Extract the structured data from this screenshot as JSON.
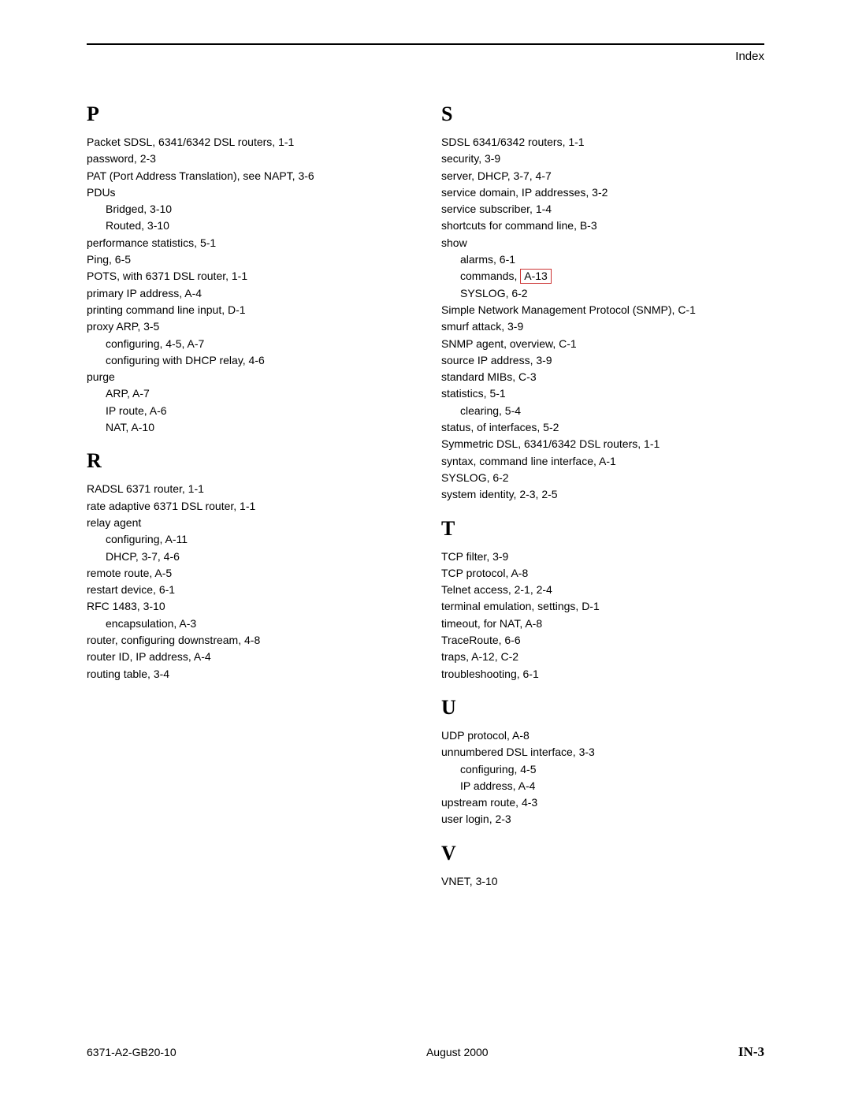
{
  "header": {
    "label": "Index"
  },
  "footer": {
    "doc_id": "6371-A2-GB20-10",
    "date": "August 2000",
    "page": "IN-3"
  },
  "col_left": [
    {
      "type": "letter",
      "text": "P"
    },
    {
      "type": "entry",
      "text": "Packet SDSL, 6341/6342 DSL routers,  1-1"
    },
    {
      "type": "entry",
      "text": "password,  2-3"
    },
    {
      "type": "entry",
      "text": "PAT (Port Address Translation), see NAPT,  3-6"
    },
    {
      "type": "entry",
      "text": "PDUs"
    },
    {
      "type": "sub",
      "text": "Bridged,  3-10"
    },
    {
      "type": "sub",
      "text": "Routed,  3-10"
    },
    {
      "type": "entry",
      "text": "performance statistics,  5-1"
    },
    {
      "type": "entry",
      "text": "Ping,  6-5"
    },
    {
      "type": "entry",
      "text": "POTS, with 6371 DSL router,  1-1"
    },
    {
      "type": "entry",
      "text": "primary IP address,  A-4"
    },
    {
      "type": "entry",
      "text": "printing command line input,  D-1"
    },
    {
      "type": "entry",
      "text": "proxy ARP,  3-5"
    },
    {
      "type": "sub",
      "text": "configuring,  4-5,  A-7"
    },
    {
      "type": "sub",
      "text": "configuring with DHCP relay,  4-6"
    },
    {
      "type": "entry",
      "text": "purge"
    },
    {
      "type": "sub",
      "text": "ARP,  A-7"
    },
    {
      "type": "sub",
      "text": "IP route,  A-6"
    },
    {
      "type": "sub",
      "text": "NAT,  A-10"
    },
    {
      "type": "letter",
      "text": "R"
    },
    {
      "type": "entry",
      "text": "RADSL 6371 router,  1-1"
    },
    {
      "type": "entry",
      "text": "rate adaptive 6371 DSL router,  1-1"
    },
    {
      "type": "entry",
      "text": "relay agent"
    },
    {
      "type": "sub",
      "text": "configuring,  A-11"
    },
    {
      "type": "sub",
      "text": "DHCP,  3-7,  4-6"
    },
    {
      "type": "entry",
      "text": "remote route,  A-5"
    },
    {
      "type": "entry",
      "text": "restart device,  6-1"
    },
    {
      "type": "entry",
      "text": "RFC 1483,  3-10"
    },
    {
      "type": "sub",
      "text": "encapsulation,  A-3"
    },
    {
      "type": "entry",
      "text": "router, configuring downstream,  4-8"
    },
    {
      "type": "entry",
      "text": "router ID, IP address,  A-4"
    },
    {
      "type": "entry",
      "text": "routing table,  3-4"
    }
  ],
  "col_right": [
    {
      "type": "letter",
      "text": "S"
    },
    {
      "type": "entry",
      "text": "SDSL 6341/6342 routers,  1-1"
    },
    {
      "type": "entry",
      "text": "security,  3-9"
    },
    {
      "type": "entry",
      "text": "server, DHCP,  3-7,  4-7"
    },
    {
      "type": "entry",
      "text": "service domain, IP addresses,  3-2"
    },
    {
      "type": "entry",
      "text": "service subscriber,  1-4"
    },
    {
      "type": "entry",
      "text": "shortcuts for command line,  B-3"
    },
    {
      "type": "entry",
      "text": "show"
    },
    {
      "type": "sub",
      "text": "alarms,  6-1"
    },
    {
      "type": "sub-hl",
      "prefix": "commands, ",
      "hl": "A-13"
    },
    {
      "type": "sub",
      "text": "SYSLOG,  6-2"
    },
    {
      "type": "entry",
      "text": "Simple Network Management Protocol (SNMP),  C-1"
    },
    {
      "type": "entry",
      "text": "smurf attack,  3-9"
    },
    {
      "type": "entry",
      "text": "SNMP agent, overview,  C-1"
    },
    {
      "type": "entry",
      "text": "source IP address,  3-9"
    },
    {
      "type": "entry",
      "text": "standard MIBs,  C-3"
    },
    {
      "type": "entry",
      "text": "statistics,  5-1"
    },
    {
      "type": "sub",
      "text": "clearing,  5-4"
    },
    {
      "type": "entry",
      "text": "status, of interfaces,  5-2"
    },
    {
      "type": "entry",
      "text": "Symmetric DSL, 6341/6342 DSL routers,  1-1"
    },
    {
      "type": "entry",
      "text": "syntax, command line interface,  A-1"
    },
    {
      "type": "entry",
      "text": "SYSLOG,  6-2"
    },
    {
      "type": "entry",
      "text": "system identity,  2-3,  2-5"
    },
    {
      "type": "letter",
      "text": "T"
    },
    {
      "type": "entry",
      "text": "TCP filter,  3-9"
    },
    {
      "type": "entry",
      "text": "TCP protocol,  A-8"
    },
    {
      "type": "entry",
      "text": "Telnet access,  2-1,  2-4"
    },
    {
      "type": "entry",
      "text": "terminal emulation, settings,  D-1"
    },
    {
      "type": "entry",
      "text": "timeout, for NAT,  A-8"
    },
    {
      "type": "entry",
      "text": "TraceRoute,  6-6"
    },
    {
      "type": "entry",
      "text": "traps,  A-12,  C-2"
    },
    {
      "type": "entry",
      "text": "troubleshooting,  6-1"
    },
    {
      "type": "letter",
      "text": "U"
    },
    {
      "type": "entry",
      "text": "UDP protocol,  A-8"
    },
    {
      "type": "entry",
      "text": "unnumbered DSL interface,  3-3"
    },
    {
      "type": "sub",
      "text": "configuring,  4-5"
    },
    {
      "type": "sub",
      "text": "IP address,  A-4"
    },
    {
      "type": "entry",
      "text": "upstream route,  4-3"
    },
    {
      "type": "entry",
      "text": "user login,  2-3"
    },
    {
      "type": "letter",
      "text": "V"
    },
    {
      "type": "entry",
      "text": "VNET,  3-10"
    }
  ]
}
